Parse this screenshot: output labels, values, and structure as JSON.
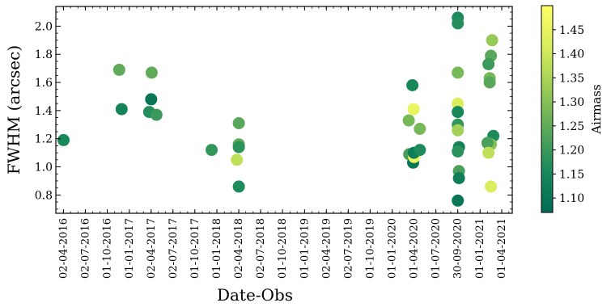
{
  "chart_data": {
    "type": "scatter",
    "title": "",
    "xlabel": "Date-Obs",
    "ylabel": "FWHM (arcsec)",
    "colorbar_label": "Airmass",
    "colormap": [
      "#006b52",
      "#1a8a5c",
      "#5aa85a",
      "#9ccd56",
      "#d8ec5c",
      "#ffff66"
    ],
    "xlim": [
      "2016-03-01",
      "2021-05-15"
    ],
    "ylim": [
      0.67,
      2.14
    ],
    "clim": [
      1.07,
      1.5
    ],
    "grid": false,
    "x_ticks": [
      "02-04-2016",
      "02-07-2016",
      "01-10-2016",
      "01-01-2017",
      "02-04-2017",
      "02-07-2017",
      "01-10-2017",
      "01-01-2018",
      "02-04-2018",
      "02-07-2018",
      "01-10-2018",
      "01-01-2019",
      "02-04-2019",
      "02-07-2019",
      "01-10-2019",
      "01-01-2020",
      "01-04-2020",
      "01-07-2020",
      "30-09-2020",
      "01-01-2021",
      "01-04-2021"
    ],
    "x_tick_dates": [
      "2016-04-02",
      "2016-07-02",
      "2016-10-01",
      "2017-01-01",
      "2017-04-02",
      "2017-07-02",
      "2017-10-01",
      "2018-01-01",
      "2018-04-02",
      "2018-07-02",
      "2018-10-01",
      "2019-01-01",
      "2019-04-02",
      "2019-07-02",
      "2019-10-01",
      "2020-01-01",
      "2020-04-01",
      "2020-07-01",
      "2020-09-30",
      "2021-01-01",
      "2021-04-01"
    ],
    "y_ticks": [
      "0.8",
      "1.0",
      "1.2",
      "1.4",
      "1.6",
      "1.8",
      "2.0"
    ],
    "color_ticks": [
      "1.10",
      "1.15",
      "1.20",
      "1.25",
      "1.30",
      "1.35",
      "1.40",
      "1.45"
    ],
    "points": [
      {
        "date": "2016-04-02",
        "fwhm": 1.19,
        "airmass": 1.15
      },
      {
        "date": "2016-11-20",
        "fwhm": 1.69,
        "airmass": 1.25
      },
      {
        "date": "2016-11-30",
        "fwhm": 1.41,
        "airmass": 1.14
      },
      {
        "date": "2017-03-25",
        "fwhm": 1.39,
        "airmass": 1.17
      },
      {
        "date": "2017-04-02",
        "fwhm": 1.48,
        "airmass": 1.1
      },
      {
        "date": "2017-04-04",
        "fwhm": 1.67,
        "airmass": 1.25
      },
      {
        "date": "2017-04-24",
        "fwhm": 1.37,
        "airmass": 1.2
      },
      {
        "date": "2017-12-10",
        "fwhm": 1.12,
        "airmass": 1.19
      },
      {
        "date": "2018-04-02",
        "fwhm": 1.31,
        "airmass": 1.24
      },
      {
        "date": "2018-04-02",
        "fwhm": 1.16,
        "airmass": 1.25
      },
      {
        "date": "2018-04-02",
        "fwhm": 1.14,
        "airmass": 1.18
      },
      {
        "date": "2018-04-02",
        "fwhm": 0.86,
        "airmass": 1.16
      },
      {
        "date": "2018-03-25",
        "fwhm": 1.05,
        "airmass": 1.38
      },
      {
        "date": "2020-03-10",
        "fwhm": 1.33,
        "airmass": 1.28
      },
      {
        "date": "2020-03-12",
        "fwhm": 1.09,
        "airmass": 1.22
      },
      {
        "date": "2020-03-25",
        "fwhm": 1.58,
        "airmass": 1.15
      },
      {
        "date": "2020-03-28",
        "fwhm": 1.03,
        "airmass": 1.1
      },
      {
        "date": "2020-04-01",
        "fwhm": 1.07,
        "airmass": 1.46
      },
      {
        "date": "2020-03-30",
        "fwhm": 1.41,
        "airmass": 1.45
      },
      {
        "date": "2020-03-31",
        "fwhm": 1.1,
        "airmass": 1.12
      },
      {
        "date": "2020-04-25",
        "fwhm": 1.27,
        "airmass": 1.28
      },
      {
        "date": "2020-04-25",
        "fwhm": 1.12,
        "airmass": 1.16
      },
      {
        "date": "2020-09-30",
        "fwhm": 2.06,
        "airmass": 1.16
      },
      {
        "date": "2020-09-30",
        "fwhm": 2.02,
        "airmass": 1.17
      },
      {
        "date": "2020-09-30",
        "fwhm": 1.67,
        "airmass": 1.28
      },
      {
        "date": "2020-09-30",
        "fwhm": 1.45,
        "airmass": 1.42
      },
      {
        "date": "2020-09-30",
        "fwhm": 1.39,
        "airmass": 1.15
      },
      {
        "date": "2020-09-30",
        "fwhm": 1.3,
        "airmass": 1.19
      },
      {
        "date": "2020-09-30",
        "fwhm": 1.26,
        "airmass": 1.34
      },
      {
        "date": "2020-10-05",
        "fwhm": 1.14,
        "airmass": 1.13
      },
      {
        "date": "2020-09-30",
        "fwhm": 1.11,
        "airmass": 1.18
      },
      {
        "date": "2020-10-05",
        "fwhm": 0.97,
        "airmass": 1.22
      },
      {
        "date": "2020-10-05",
        "fwhm": 0.92,
        "airmass": 1.12
      },
      {
        "date": "2020-09-30",
        "fwhm": 0.76,
        "airmass": 1.1
      },
      {
        "date": "2021-02-20",
        "fwhm": 1.9,
        "airmass": 1.32
      },
      {
        "date": "2021-02-15",
        "fwhm": 1.79,
        "airmass": 1.24
      },
      {
        "date": "2021-02-05",
        "fwhm": 1.73,
        "airmass": 1.2
      },
      {
        "date": "2021-02-10",
        "fwhm": 1.63,
        "airmass": 1.28
      },
      {
        "date": "2021-02-10",
        "fwhm": 1.6,
        "airmass": 1.24
      },
      {
        "date": "2021-02-25",
        "fwhm": 1.22,
        "airmass": 1.16
      },
      {
        "date": "2021-02-15",
        "fwhm": 1.16,
        "airmass": 1.3
      },
      {
        "date": "2021-02-01",
        "fwhm": 1.17,
        "airmass": 1.22
      },
      {
        "date": "2021-02-05",
        "fwhm": 1.1,
        "airmass": 1.38
      },
      {
        "date": "2021-02-15",
        "fwhm": 0.86,
        "airmass": 1.42
      }
    ]
  }
}
